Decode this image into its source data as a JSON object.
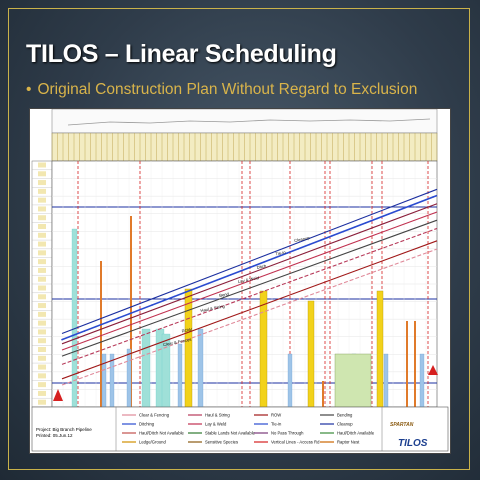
{
  "slide": {
    "title": "TILOS – Linear Scheduling",
    "bullet": "Original Construction Plan Without Regard to Exclusion"
  },
  "legend": {
    "items": [
      "Clear & Fencing",
      "Ditching",
      "Haul/Ditch Not Available",
      "Ledge/Ground",
      "Haul & String",
      "Lay & Weld",
      "Stable Lands Not Available",
      "Sensitive Species",
      "ROW",
      "Tie-in",
      "No Pass Through",
      "Vertical Lines - Access Rd",
      "Bending",
      "Cleanup",
      "Haul/Ditch Available",
      "Raptor Nest"
    ]
  },
  "project": {
    "name": "Project: Big Branch Pipeline",
    "printed": "Printed: 05.Jun.12"
  },
  "logos": {
    "primary": "TILOS",
    "secondary": "SPARTAN"
  },
  "colors": {
    "accent": "#d9b44a",
    "cleanup": "#1b2fa0",
    "tiein": "#2a4bd0",
    "ditch": "#8a1e3a",
    "laywell": "#c0304f",
    "haul": "#b73a5a",
    "row": "#a01818",
    "exclusion": "#d62020",
    "yellow_bar": "#f2d21a",
    "teal_bar": "#9fe0d8",
    "blue_bar": "#9ec4e8",
    "orange_bar": "#e07a2a"
  },
  "chart_data": {
    "type": "line",
    "series": [
      {
        "name": "Cleanup",
        "x": [
          0,
          100
        ],
        "y": [
          25,
          95
        ]
      },
      {
        "name": "Tie-in",
        "x": [
          0,
          100
        ],
        "y": [
          22,
          92
        ]
      },
      {
        "name": "Ditch",
        "x": [
          0,
          100
        ],
        "y": [
          20,
          88
        ]
      },
      {
        "name": "Lay & Weld",
        "x": [
          0,
          100
        ],
        "y": [
          17,
          84
        ]
      },
      {
        "name": "Bend",
        "x": [
          0,
          100
        ],
        "y": [
          14,
          80
        ]
      },
      {
        "name": "Haul & String",
        "x": [
          0,
          100
        ],
        "y": [
          10,
          76
        ]
      },
      {
        "name": "ROW",
        "x": [
          0,
          100
        ],
        "y": [
          3,
          70
        ]
      },
      {
        "name": "Clear & Fences",
        "x": [
          0,
          100
        ],
        "y": [
          0,
          66
        ]
      }
    ]
  }
}
